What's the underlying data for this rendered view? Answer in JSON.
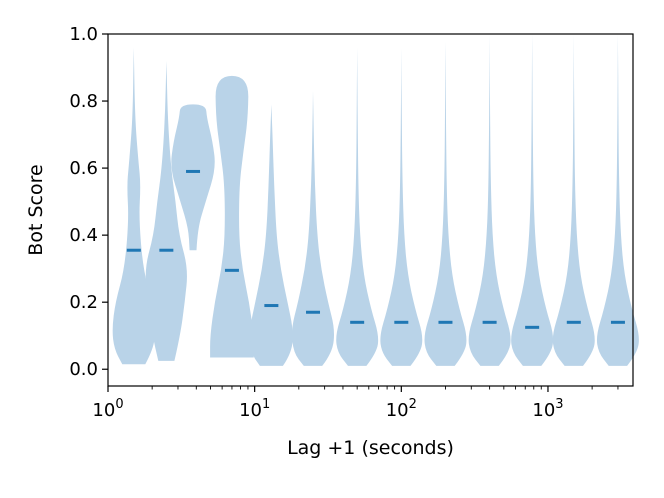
{
  "chart_data": {
    "type": "violin",
    "xlabel": "Lag +1 (seconds)",
    "ylabel": "Bot Score",
    "xscale": "log",
    "xlim": [
      1,
      3800
    ],
    "ylim": [
      -0.05,
      1.0
    ],
    "x_ticks": [
      {
        "base": "10",
        "exp": "0",
        "value": 1
      },
      {
        "base": "10",
        "exp": "1",
        "value": 10
      },
      {
        "base": "10",
        "exp": "2",
        "value": 100
      },
      {
        "base": "10",
        "exp": "3",
        "value": 1000
      }
    ],
    "y_ticks": [
      "0.0",
      "0.2",
      "0.4",
      "0.6",
      "0.8",
      "1.0"
    ],
    "y_tick_values": [
      0.0,
      0.2,
      0.4,
      0.6,
      0.8,
      1.0
    ],
    "fill_color": "#b9d3e8",
    "median_color": "#1f77b4",
    "violins": [
      {
        "x": 1.5,
        "median": 0.355,
        "min": 0.015,
        "max": 0.96,
        "profile": [
          [
            0.015,
            0.5
          ],
          [
            0.06,
            0.85
          ],
          [
            0.12,
            0.95
          ],
          [
            0.2,
            0.8
          ],
          [
            0.3,
            0.4
          ],
          [
            0.45,
            0.22
          ],
          [
            0.55,
            0.3
          ],
          [
            0.62,
            0.2
          ],
          [
            0.75,
            0.05
          ],
          [
            0.96,
            0.0
          ]
        ]
      },
      {
        "x": 2.5,
        "median": 0.355,
        "min": 0.025,
        "max": 0.92,
        "profile": [
          [
            0.025,
            0.35
          ],
          [
            0.1,
            0.6
          ],
          [
            0.2,
            0.8
          ],
          [
            0.3,
            0.95
          ],
          [
            0.4,
            0.55
          ],
          [
            0.5,
            0.4
          ],
          [
            0.6,
            0.2
          ],
          [
            0.75,
            0.06
          ],
          [
            0.92,
            0.0
          ]
        ]
      },
      {
        "x": 3.8,
        "median": 0.59,
        "min": 0.355,
        "max": 0.79,
        "profile": [
          [
            0.355,
            0.15
          ],
          [
            0.42,
            0.2
          ],
          [
            0.5,
            0.55
          ],
          [
            0.6,
            1.0
          ],
          [
            0.68,
            0.85
          ],
          [
            0.75,
            0.6
          ],
          [
            0.79,
            0.55
          ]
        ]
      },
      {
        "x": 7.0,
        "median": 0.295,
        "min": 0.035,
        "max": 0.875,
        "profile": [
          [
            0.035,
            0.95
          ],
          [
            0.1,
            0.95
          ],
          [
            0.2,
            0.75
          ],
          [
            0.3,
            0.45
          ],
          [
            0.4,
            0.3
          ],
          [
            0.55,
            0.32
          ],
          [
            0.65,
            0.5
          ],
          [
            0.75,
            0.7
          ],
          [
            0.875,
            0.72
          ]
        ]
      },
      {
        "x": 13,
        "median": 0.19,
        "min": 0.01,
        "max": 0.79,
        "profile": [
          [
            0.01,
            0.5
          ],
          [
            0.05,
            0.9
          ],
          [
            0.12,
            0.95
          ],
          [
            0.2,
            0.7
          ],
          [
            0.3,
            0.4
          ],
          [
            0.4,
            0.22
          ],
          [
            0.55,
            0.12
          ],
          [
            0.7,
            0.05
          ],
          [
            0.79,
            0.0
          ]
        ]
      },
      {
        "x": 25,
        "median": 0.17,
        "min": 0.01,
        "max": 0.83,
        "profile": [
          [
            0.01,
            0.4
          ],
          [
            0.05,
            0.85
          ],
          [
            0.12,
            0.95
          ],
          [
            0.2,
            0.65
          ],
          [
            0.3,
            0.35
          ],
          [
            0.4,
            0.18
          ],
          [
            0.55,
            0.08
          ],
          [
            0.7,
            0.03
          ],
          [
            0.83,
            0.0
          ]
        ]
      },
      {
        "x": 50,
        "median": 0.14,
        "min": 0.01,
        "max": 0.96,
        "profile": [
          [
            0.01,
            0.4
          ],
          [
            0.05,
            0.85
          ],
          [
            0.1,
            0.95
          ],
          [
            0.18,
            0.6
          ],
          [
            0.28,
            0.28
          ],
          [
            0.4,
            0.12
          ],
          [
            0.55,
            0.05
          ],
          [
            0.75,
            0.02
          ],
          [
            0.96,
            0.0
          ]
        ]
      },
      {
        "x": 100,
        "median": 0.14,
        "min": 0.01,
        "max": 0.96,
        "profile": [
          [
            0.01,
            0.4
          ],
          [
            0.05,
            0.85
          ],
          [
            0.1,
            0.95
          ],
          [
            0.18,
            0.6
          ],
          [
            0.28,
            0.28
          ],
          [
            0.4,
            0.12
          ],
          [
            0.55,
            0.05
          ],
          [
            0.75,
            0.02
          ],
          [
            0.96,
            0.0
          ]
        ]
      },
      {
        "x": 200,
        "median": 0.14,
        "min": 0.01,
        "max": 0.98,
        "profile": [
          [
            0.01,
            0.4
          ],
          [
            0.05,
            0.85
          ],
          [
            0.1,
            0.95
          ],
          [
            0.18,
            0.6
          ],
          [
            0.28,
            0.28
          ],
          [
            0.4,
            0.12
          ],
          [
            0.55,
            0.05
          ],
          [
            0.75,
            0.02
          ],
          [
            0.98,
            0.0
          ]
        ]
      },
      {
        "x": 400,
        "median": 0.14,
        "min": 0.01,
        "max": 1.0,
        "profile": [
          [
            0.01,
            0.4
          ],
          [
            0.05,
            0.85
          ],
          [
            0.1,
            0.95
          ],
          [
            0.18,
            0.6
          ],
          [
            0.28,
            0.28
          ],
          [
            0.4,
            0.12
          ],
          [
            0.55,
            0.05
          ],
          [
            0.75,
            0.02
          ],
          [
            1.0,
            0.0
          ]
        ]
      },
      {
        "x": 780,
        "median": 0.125,
        "min": 0.01,
        "max": 1.0,
        "profile": [
          [
            0.01,
            0.4
          ],
          [
            0.05,
            0.85
          ],
          [
            0.1,
            0.95
          ],
          [
            0.18,
            0.6
          ],
          [
            0.28,
            0.28
          ],
          [
            0.4,
            0.12
          ],
          [
            0.55,
            0.05
          ],
          [
            0.75,
            0.02
          ],
          [
            1.0,
            0.0
          ]
        ]
      },
      {
        "x": 1500,
        "median": 0.14,
        "min": 0.01,
        "max": 1.0,
        "profile": [
          [
            0.01,
            0.4
          ],
          [
            0.05,
            0.85
          ],
          [
            0.1,
            0.95
          ],
          [
            0.18,
            0.6
          ],
          [
            0.28,
            0.28
          ],
          [
            0.4,
            0.12
          ],
          [
            0.55,
            0.05
          ],
          [
            0.75,
            0.02
          ],
          [
            1.0,
            0.0
          ]
        ]
      },
      {
        "x": 3000,
        "median": 0.14,
        "min": 0.01,
        "max": 1.0,
        "profile": [
          [
            0.01,
            0.4
          ],
          [
            0.05,
            0.85
          ],
          [
            0.1,
            0.95
          ],
          [
            0.18,
            0.6
          ],
          [
            0.28,
            0.28
          ],
          [
            0.4,
            0.12
          ],
          [
            0.55,
            0.05
          ],
          [
            0.75,
            0.02
          ],
          [
            1.0,
            0.0
          ]
        ]
      }
    ]
  }
}
